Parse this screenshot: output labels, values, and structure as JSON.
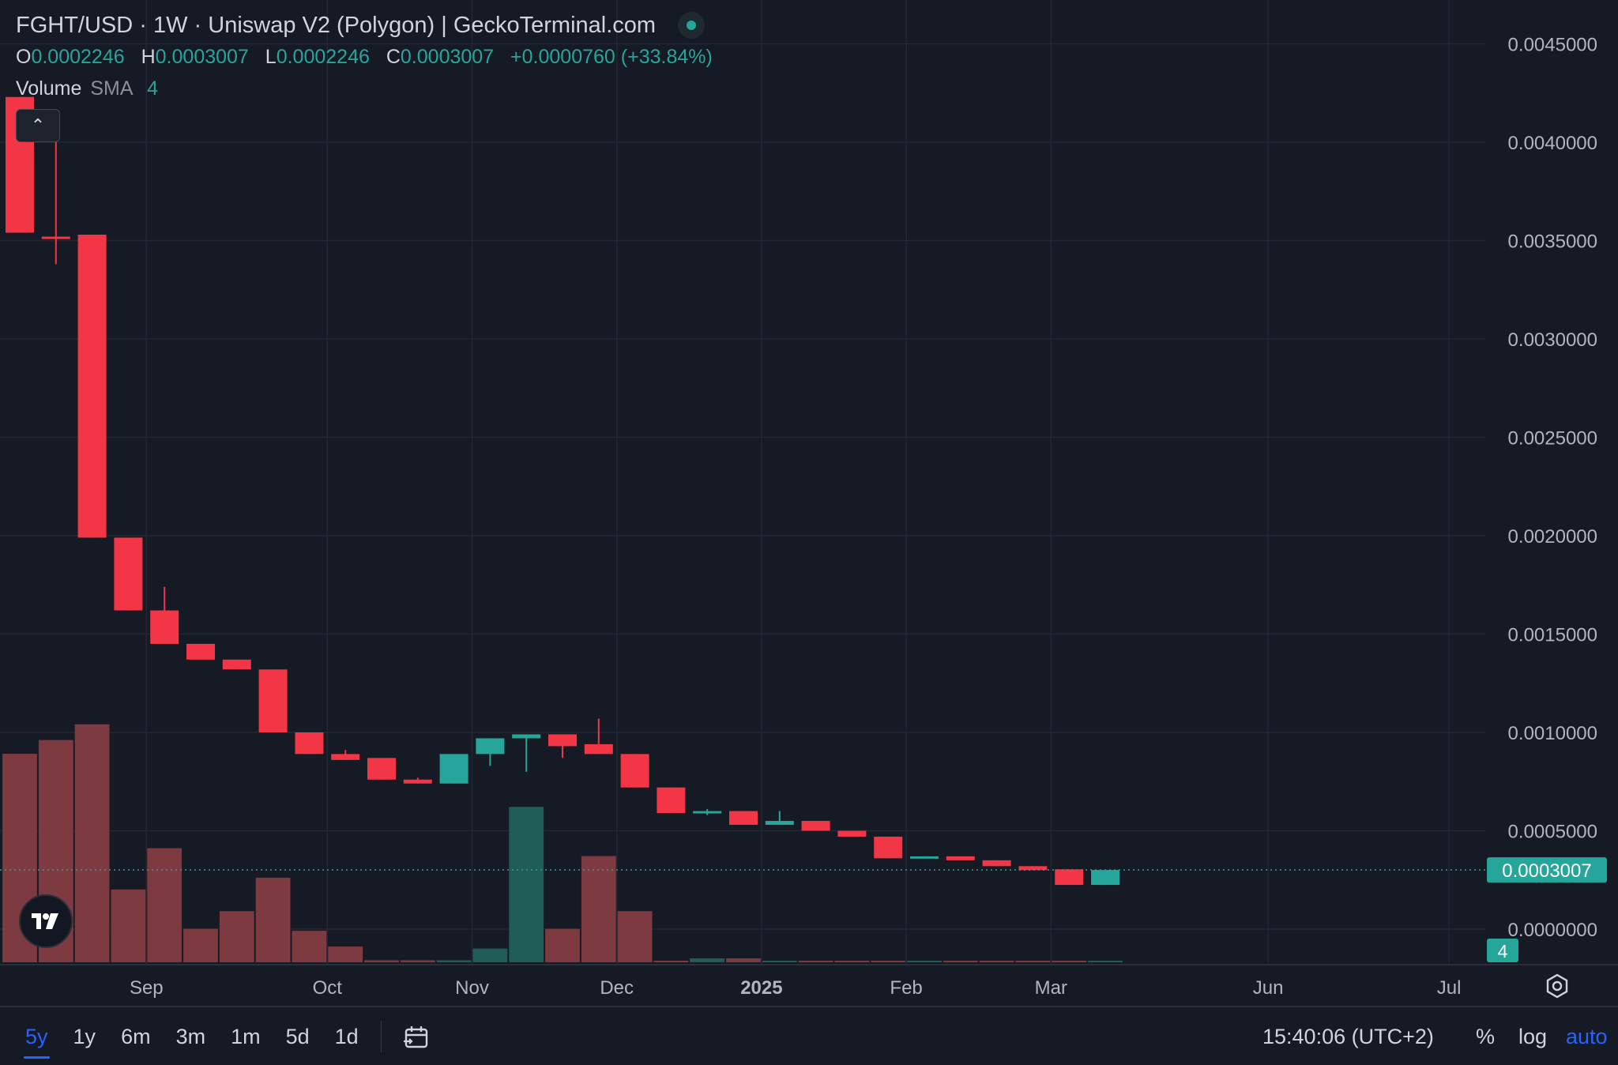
{
  "header": {
    "title": "FGHT/USD · 1W · Uniswap V2 (Polygon) | GeckoTerminal.com",
    "ohlc": {
      "o_label": "O",
      "o_value": "0.0002246",
      "h_label": "H",
      "h_value": "0.0003007",
      "l_label": "L",
      "l_value": "0.0002246",
      "c_label": "C",
      "c_value": "0.0003007",
      "change": "+0.0000760 (+33.84%)"
    },
    "volume": {
      "label": "Volume",
      "sma": "SMA",
      "length": "4"
    }
  },
  "colors": {
    "background": "#161a25",
    "grid": "#232734",
    "up": "#26a69a",
    "down": "#f23645",
    "up_volume": "#1f5d56",
    "down_volume": "#7d3a41",
    "text": "#d1d4dc",
    "accent": "#2962ff"
  },
  "chart_data": {
    "type": "candlestick",
    "interval": "1W",
    "y_axis": {
      "min": -0.0001,
      "max": 0.0046,
      "ticks": [
        "0.0045000",
        "0.0040000",
        "0.0035000",
        "0.0030000",
        "0.0025000",
        "0.0020000",
        "0.0015000",
        "0.0010000",
        "0.0005000",
        "0.0000000"
      ],
      "tick_values": [
        0.0045,
        0.004,
        0.0035,
        0.003,
        0.0025,
        0.002,
        0.0015,
        0.001,
        0.0005,
        0.0
      ]
    },
    "x_axis": {
      "labels": [
        {
          "label": "Sep",
          "index": 3.5
        },
        {
          "label": "Oct",
          "index": 8.5
        },
        {
          "label": "Nov",
          "index": 12.5
        },
        {
          "label": "Dec",
          "index": 16.5
        },
        {
          "label": "2025",
          "index": 20.5,
          "bold": true
        },
        {
          "label": "Feb",
          "index": 24.5
        },
        {
          "label": "Mar",
          "index": 28.5
        },
        {
          "label": "Jun",
          "index": 34.5
        },
        {
          "label": "Jul",
          "index": 39.5
        }
      ]
    },
    "candles": [
      {
        "o": 0.00423,
        "h": 0.00423,
        "l": 0.00354,
        "c": 0.00354
      },
      {
        "o": 0.00352,
        "h": 0.00403,
        "l": 0.00338,
        "c": 0.00351
      },
      {
        "o": 0.00353,
        "h": 0.00353,
        "l": 0.00199,
        "c": 0.00199
      },
      {
        "o": 0.00199,
        "h": 0.00199,
        "l": 0.00162,
        "c": 0.00162
      },
      {
        "o": 0.00162,
        "h": 0.00174,
        "l": 0.00145,
        "c": 0.00145
      },
      {
        "o": 0.00145,
        "h": 0.00145,
        "l": 0.00137,
        "c": 0.00137
      },
      {
        "o": 0.00137,
        "h": 0.00137,
        "l": 0.00132,
        "c": 0.00132
      },
      {
        "o": 0.00132,
        "h": 0.00132,
        "l": 0.001,
        "c": 0.001
      },
      {
        "o": 0.001,
        "h": 0.001,
        "l": 0.00089,
        "c": 0.00089
      },
      {
        "o": 0.00089,
        "h": 0.00091,
        "l": 0.00086,
        "c": 0.00086
      },
      {
        "o": 0.00087,
        "h": 0.00087,
        "l": 0.00076,
        "c": 0.00076
      },
      {
        "o": 0.00076,
        "h": 0.00077,
        "l": 0.00074,
        "c": 0.00074
      },
      {
        "o": 0.00074,
        "h": 0.00089,
        "l": 0.00074,
        "c": 0.00089
      },
      {
        "o": 0.00089,
        "h": 0.00097,
        "l": 0.00083,
        "c": 0.00097
      },
      {
        "o": 0.00097,
        "h": 0.00099,
        "l": 0.0008,
        "c": 0.00099
      },
      {
        "o": 0.00099,
        "h": 0.00099,
        "l": 0.00087,
        "c": 0.00093
      },
      {
        "o": 0.00094,
        "h": 0.00107,
        "l": 0.00089,
        "c": 0.00089
      },
      {
        "o": 0.00089,
        "h": 0.00089,
        "l": 0.00072,
        "c": 0.00072
      },
      {
        "o": 0.00072,
        "h": 0.00072,
        "l": 0.00059,
        "c": 0.00059
      },
      {
        "o": 0.00059,
        "h": 0.00061,
        "l": 0.00058,
        "c": 0.0006
      },
      {
        "o": 0.0006,
        "h": 0.0006,
        "l": 0.00053,
        "c": 0.00053
      },
      {
        "o": 0.00053,
        "h": 0.0006,
        "l": 0.00053,
        "c": 0.00055
      },
      {
        "o": 0.00055,
        "h": 0.00055,
        "l": 0.0005,
        "c": 0.0005
      },
      {
        "o": 0.0005,
        "h": 0.0005,
        "l": 0.00047,
        "c": 0.00047
      },
      {
        "o": 0.00047,
        "h": 0.00047,
        "l": 0.00036,
        "c": 0.00036
      },
      {
        "o": 0.00036,
        "h": 0.00037,
        "l": 0.00036,
        "c": 0.00037
      },
      {
        "o": 0.00037,
        "h": 0.00037,
        "l": 0.00035,
        "c": 0.00035
      },
      {
        "o": 0.00035,
        "h": 0.00035,
        "l": 0.00032,
        "c": 0.00032
      },
      {
        "o": 0.00032,
        "h": 0.00032,
        "l": 0.0003,
        "c": 0.0003
      },
      {
        "o": 0.000304,
        "h": 0.000304,
        "l": 0.0002246,
        "c": 0.0002246
      },
      {
        "o": 0.0002246,
        "h": 0.0003007,
        "l": 0.0002246,
        "c": 0.0003007
      }
    ],
    "volume": [
      0.00106,
      0.00113,
      0.00121,
      0.00037,
      0.00058,
      0.00017,
      0.00026,
      0.00043,
      0.00016,
      8e-05,
      1e-05,
      1e-05,
      1e-05,
      7e-05,
      0.00079,
      0.00017,
      0.00054,
      0.00026,
      5e-06,
      2e-05,
      2e-05,
      5e-06,
      5e-06,
      5e-06,
      5e-06,
      5e-06,
      5e-06,
      5e-06,
      5e-06,
      5e-06,
      5e-06
    ],
    "last_price": "0.0003007",
    "last_price_value": 0.0003007,
    "volume_sma_badge": "4"
  },
  "bottombar": {
    "timeframes": [
      "5y",
      "1y",
      "6m",
      "3m",
      "1m",
      "5d",
      "1d"
    ],
    "active_timeframe": "5y",
    "clock": "15:40:06 (UTC+2)",
    "pct_label": "%",
    "log_label": "log",
    "auto_label": "auto"
  }
}
